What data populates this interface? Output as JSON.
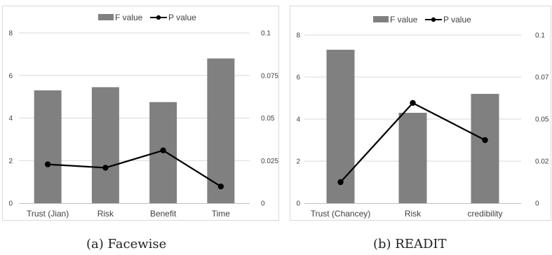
{
  "chart_data": [
    {
      "type": "bar+line",
      "caption": "(a) Facewise",
      "categories": [
        "Trust (Jian)",
        "Risk",
        "Benefit",
        "Time"
      ],
      "series": [
        {
          "name": "F value",
          "type": "bar",
          "axis": "left",
          "values": [
            5.3,
            5.45,
            4.75,
            6.8
          ]
        },
        {
          "name": "P value",
          "type": "line",
          "axis": "right",
          "values": [
            0.0228,
            0.0208,
            0.031,
            0.0098
          ]
        }
      ],
      "y_left": {
        "ticks": [
          "0",
          "2",
          "4",
          "6",
          "8"
        ],
        "ylim": [
          0,
          8
        ]
      },
      "y_right": {
        "ticks": [
          "0",
          "0.025",
          "0.05",
          "0.075",
          "0.1"
        ],
        "ylim": [
          0,
          0.1
        ]
      },
      "grid": true,
      "legend": "top-center",
      "colors": {
        "bar": "#808080",
        "line": "#000000"
      }
    },
    {
      "type": "bar+line",
      "caption": "(b) READIT",
      "categories": [
        "Trust (Chancey)",
        "Risk",
        "credibility"
      ],
      "series": [
        {
          "name": "F value",
          "type": "bar",
          "axis": "left",
          "values": [
            7.3,
            4.3,
            5.2
          ]
        },
        {
          "name": "P value",
          "type": "line",
          "axis": "right",
          "values": [
            0.0125,
            0.0596,
            0.0375
          ]
        }
      ],
      "y_left": {
        "ticks": [
          "0",
          "2",
          "4",
          "6",
          "8"
        ],
        "ylim": [
          0,
          8
        ]
      },
      "y_right": {
        "ticks": [
          "0",
          "0.02",
          "0.05",
          "0.07",
          "0.1"
        ],
        "ylim": [
          0,
          0.1
        ]
      },
      "grid": true,
      "legend": "top-center",
      "colors": {
        "bar": "#808080",
        "line": "#000000"
      }
    }
  ]
}
